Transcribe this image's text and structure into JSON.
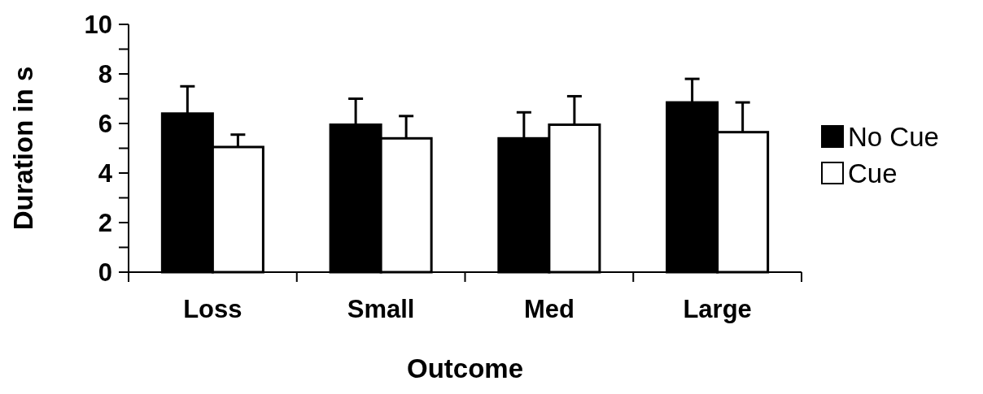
{
  "chart_data": {
    "type": "bar",
    "xlabel": "Outcome",
    "ylabel": "Duration in s",
    "categories": [
      "Loss",
      "Small",
      "Med",
      "Large"
    ],
    "series": [
      {
        "name": "No Cue",
        "color": "#000000",
        "values": [
          6.4,
          5.95,
          5.4,
          6.85
        ],
        "errors": [
          [
            6.4,
            7.5
          ],
          [
            5.95,
            7.0
          ],
          [
            5.4,
            6.45
          ],
          [
            6.85,
            7.8
          ]
        ]
      },
      {
        "name": "Cue",
        "color": "#ffffff",
        "values": [
          5.05,
          5.4,
          5.95,
          5.65
        ],
        "errors": [
          [
            5.05,
            5.55
          ],
          [
            5.4,
            6.3
          ],
          [
            5.95,
            7.1
          ],
          [
            5.65,
            6.85
          ]
        ]
      }
    ],
    "ylim": [
      0,
      10
    ],
    "yticks": [
      0,
      {
        "value": 1,
        "label": null
      },
      2,
      {
        "value": 3,
        "label": null
      },
      4,
      {
        "value": 5,
        "label": null
      },
      6,
      {
        "value": 7,
        "label": null
      },
      8,
      {
        "value": 9,
        "label": null
      },
      10
    ],
    "legend": "right",
    "grid": false
  }
}
